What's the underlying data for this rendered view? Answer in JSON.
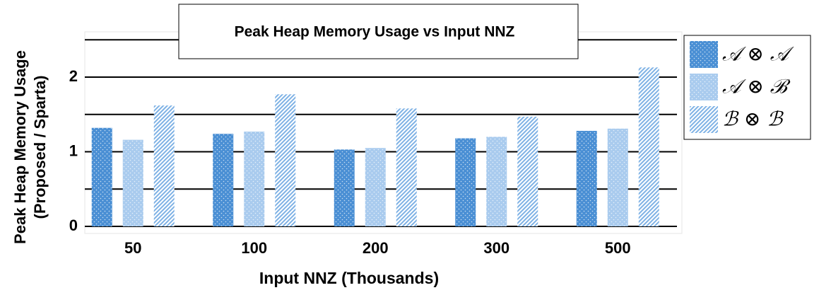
{
  "chart_data": {
    "type": "bar",
    "title": "Peak Heap Memory Usage vs Input NNZ",
    "x_label": "Input NNZ (Thousands)",
    "y_label": [
      "Peak Heap Memory Usage",
      "(Proposed / Sparta)"
    ],
    "categories": [
      "50",
      "100",
      "200",
      "300",
      "500"
    ],
    "series": [
      {
        "name": "𝒜 ⊗ 𝒜",
        "color": "#4a8fd4",
        "pattern": "dots",
        "values": [
          1.32,
          1.24,
          1.03,
          1.18,
          1.28
        ]
      },
      {
        "name": "𝒜 ⊗ ℬ",
        "color": "#a9cbee",
        "pattern": "dots",
        "values": [
          1.16,
          1.27,
          1.05,
          1.2,
          1.31
        ]
      },
      {
        "name": "ℬ ⊗ ℬ",
        "color": "#7fb2e5",
        "pattern": "stripes",
        "values": [
          1.62,
          1.77,
          1.58,
          1.47,
          2.13
        ]
      }
    ],
    "ylim": [
      0,
      2.6
    ],
    "yticks": [
      0,
      1,
      2
    ],
    "ygrid": [
      0,
      0.5,
      1,
      1.5,
      2,
      2.5
    ],
    "grid": true
  }
}
